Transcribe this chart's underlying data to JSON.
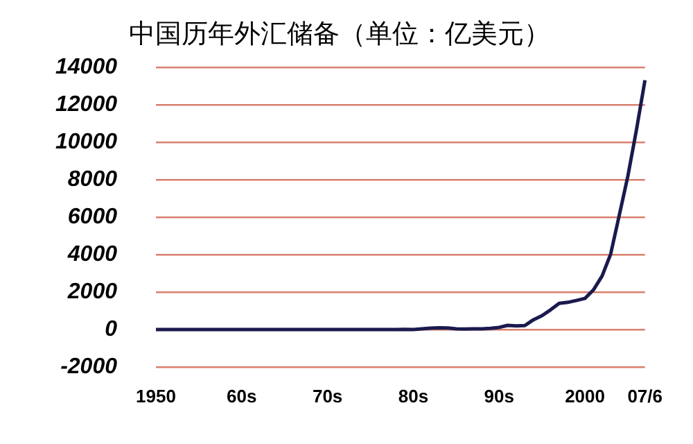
{
  "chart_data": {
    "type": "line",
    "title": "中国历年外汇储备（单位：亿美元）",
    "categories": [
      "1950",
      null,
      null,
      null,
      null,
      null,
      null,
      null,
      null,
      null,
      "60s",
      null,
      null,
      null,
      null,
      null,
      null,
      null,
      null,
      null,
      "70s",
      null,
      null,
      null,
      null,
      null,
      null,
      null,
      null,
      null,
      "80s",
      null,
      null,
      null,
      null,
      null,
      null,
      null,
      null,
      null,
      "90s",
      null,
      null,
      null,
      null,
      null,
      null,
      null,
      null,
      null,
      "2000",
      null,
      null,
      null,
      null,
      null,
      null,
      "07/6"
    ],
    "series": [
      {
        "color": "#1a1a4e",
        "values": [
          0,
          0,
          0,
          0,
          0,
          0,
          0,
          0,
          0,
          0,
          0,
          0,
          0,
          0,
          0,
          0,
          0,
          0,
          0,
          0,
          0,
          0,
          0,
          0,
          0,
          0,
          0,
          0,
          0,
          10,
          0,
          30,
          70,
          90,
          80,
          30,
          20,
          30,
          30,
          60,
          110,
          220,
          190,
          210,
          520,
          740,
          1050,
          1400,
          1450,
          1550,
          1660,
          2120,
          2860,
          4030,
          6100,
          8190,
          10660,
          13330
        ]
      }
    ],
    "ylim": [
      -2000,
      14000
    ],
    "yticks": [
      -2000,
      0,
      2000,
      4000,
      6000,
      8000,
      10000,
      12000,
      14000
    ],
    "grid": "y",
    "legend": false,
    "marker": "none",
    "line_style": "solid"
  }
}
